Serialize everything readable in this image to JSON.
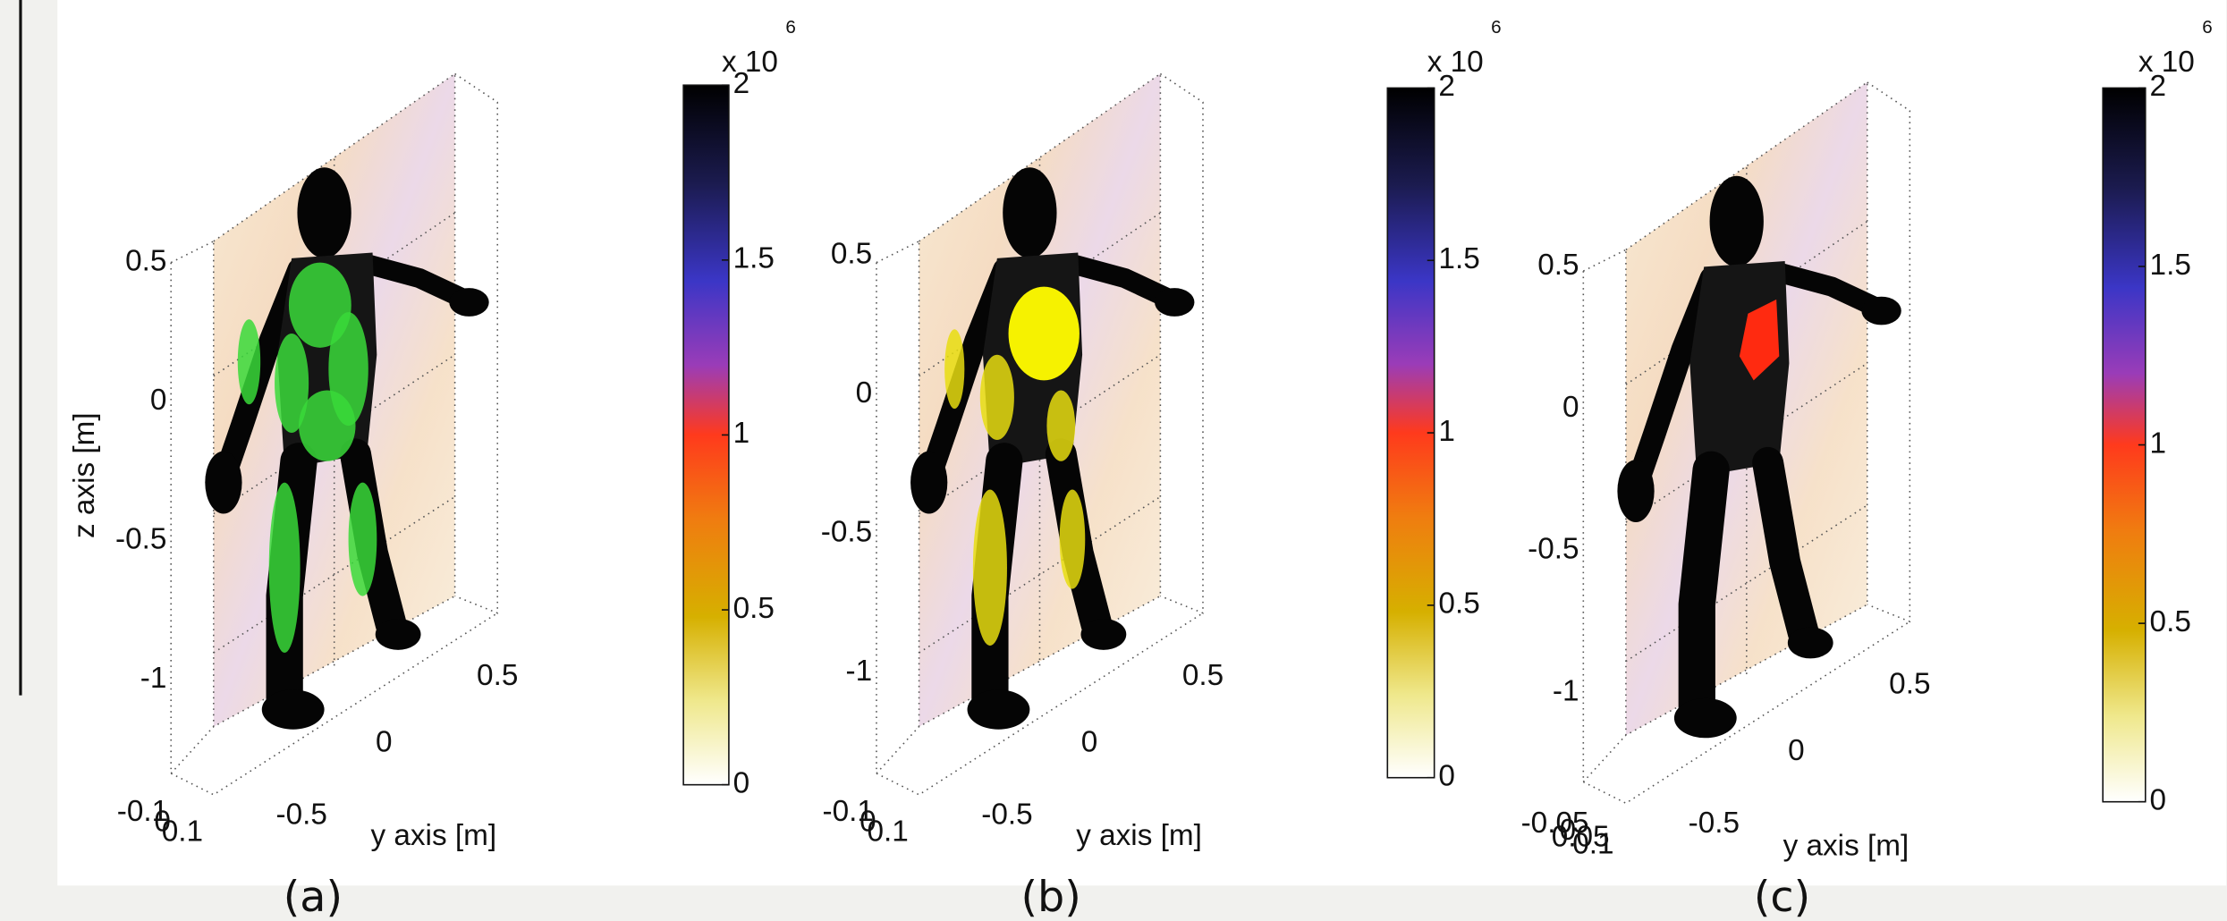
{
  "panels": [
    {
      "caption": "(a)",
      "z_label": "z axis [m]",
      "y_label": "y axis [m]",
      "z_ticks": [
        0.5,
        0,
        -0.5,
        -1
      ],
      "y_ticks": [
        -0.5,
        0,
        0.5
      ],
      "x_ticks": [
        -0.1,
        0,
        0.1
      ],
      "colorbar": {
        "ticks": [
          2,
          1.5,
          1,
          0.5,
          0
        ],
        "multiplier": "x 10",
        "exponent": "6"
      }
    },
    {
      "caption": "(b)",
      "y_label": "y axis [m]",
      "z_ticks": [
        0.5,
        0,
        -0.5,
        -1
      ],
      "y_ticks": [
        -0.5,
        0,
        0.5
      ],
      "x_ticks": [
        -0.1,
        0,
        0.1
      ],
      "colorbar": {
        "ticks": [
          2,
          1.5,
          1,
          0.5,
          0
        ],
        "multiplier": "x 10",
        "exponent": "6"
      }
    },
    {
      "caption": "(c)",
      "y_label": "y axis [m]",
      "z_ticks": [
        0.5,
        0,
        -0.5,
        -1
      ],
      "y_ticks": [
        -0.5,
        0,
        0.5
      ],
      "x_ticks": [
        -0.05,
        0,
        0.05,
        0.1
      ],
      "colorbar": {
        "ticks": [
          2,
          1.5,
          1,
          0.5,
          0
        ],
        "multiplier": "x 10",
        "exponent": "6"
      }
    }
  ]
}
